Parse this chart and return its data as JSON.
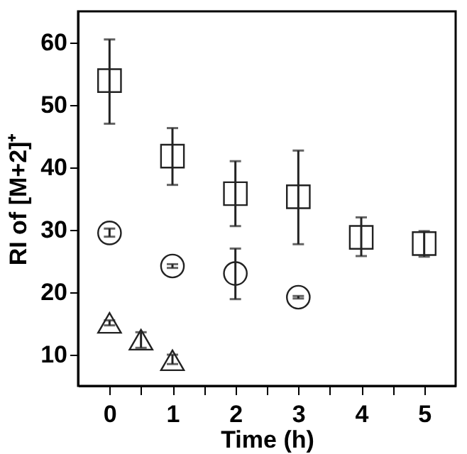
{
  "chart_data": {
    "type": "scatter",
    "xlabel": "Time (h)",
    "ylabel": "RI of [M+2]⁺",
    "xlim": [
      -0.5,
      5.5
    ],
    "ylim": [
      5,
      65
    ],
    "xticks": [
      0,
      {
        "value": 0.5,
        "label": null
      },
      1,
      {
        "value": 1.5,
        "label": null
      },
      2,
      {
        "value": 2.5,
        "label": null
      },
      3,
      {
        "value": 3.5,
        "label": null
      },
      4,
      {
        "value": 4.5,
        "label": null
      },
      5
    ],
    "yticks": [
      10,
      20,
      30,
      40,
      50,
      60
    ],
    "grid": false,
    "legend": false,
    "series": [
      {
        "color": "#222222",
        "marker": "square",
        "x": [
          0,
          1,
          2,
          3,
          4,
          5
        ],
        "values": [
          53.9,
          41.8,
          35.8,
          35.3,
          28.8,
          27.8
        ],
        "errors": [
          [
            47,
            60.5
          ],
          [
            37.2,
            46.3
          ],
          [
            30.6,
            41
          ],
          [
            27.7,
            42.7
          ],
          [
            25.8,
            32
          ],
          [
            25.7,
            29.8
          ]
        ]
      },
      {
        "color": "#222222",
        "marker": "circle",
        "x": [
          0,
          1,
          2,
          3
        ],
        "values": [
          29.5,
          24.2,
          23,
          19.2
        ],
        "errors": [
          [
            28.9,
            30.2
          ],
          [
            23.9,
            24.5
          ],
          [
            18.9,
            27
          ],
          [
            19,
            19.4
          ]
        ]
      },
      {
        "color": "#222222",
        "marker": "triangle",
        "x": [
          0,
          0.5,
          1
        ],
        "values": [
          15.1,
          12.4,
          9.1
        ],
        "errors": [
          [
            14.7,
            15.5
          ],
          [
            11.1,
            13.6
          ],
          [
            8.5,
            10
          ]
        ]
      }
    ]
  }
}
